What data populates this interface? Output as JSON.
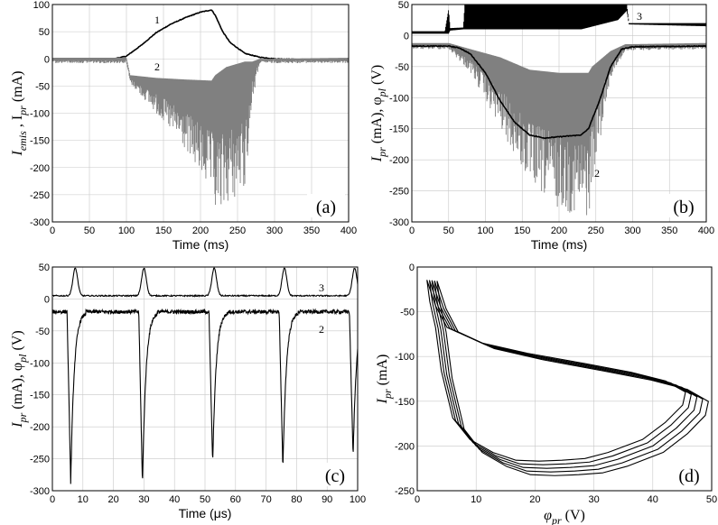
{
  "chart_data": [
    {
      "panel_label": "(a)",
      "type": "line",
      "xlabel": "Time (ms)",
      "ylabel": "I_emis , I_pr (mA)",
      "ylabel_parts": {
        "s1": "I",
        "sub1": "emis",
        "mid": " , I",
        "sub2": "pr",
        "end": " (mA)"
      },
      "xlim": [
        0,
        400
      ],
      "ylim": [
        -300,
        100
      ],
      "xticks": [
        "0",
        "50",
        "100",
        "150",
        "200",
        "250",
        "300",
        "350",
        "400"
      ],
      "yticks": [
        "-300",
        "-250",
        "-200",
        "-150",
        "-100",
        "-50",
        "0",
        "50",
        "100"
      ],
      "series": [
        {
          "name": "1",
          "color": "#000000",
          "x": [
            0,
            60,
            80,
            100,
            120,
            140,
            160,
            180,
            200,
            215,
            220,
            230,
            240,
            260,
            280,
            300,
            330,
            360,
            400
          ],
          "y": [
            -2,
            -2,
            -1,
            5,
            25,
            48,
            64,
            76,
            86,
            90,
            80,
            50,
            30,
            10,
            3,
            0,
            -1,
            -2,
            -2
          ]
        },
        {
          "name": "2",
          "color": "#808080",
          "style": "noise-band",
          "x": [
            0,
            100,
            105,
            140,
            180,
            215,
            220,
            235,
            260,
            270,
            280,
            400
          ],
          "upper": [
            2,
            2,
            -30,
            -35,
            -38,
            -40,
            -30,
            -15,
            -5,
            -5,
            0,
            2
          ],
          "lower": [
            -8,
            -8,
            -45,
            -100,
            -170,
            -250,
            -290,
            -270,
            -240,
            -80,
            -8,
            -8
          ]
        }
      ],
      "annotations": [
        "1",
        "2"
      ]
    },
    {
      "panel_label": "(b)",
      "type": "line",
      "xlabel": "Time (ms)",
      "ylabel": "I_pr (mA), φ_pl (V)",
      "ylabel_parts": {
        "s1": "I",
        "sub1": "pr",
        "mid": " (mA), φ",
        "sub2": "pl",
        "end": " (V)"
      },
      "xlim": [
        0,
        400
      ],
      "ylim": [
        -300,
        50
      ],
      "xticks": [
        "0",
        "50",
        "100",
        "150",
        "200",
        "250",
        "300",
        "350",
        "400"
      ],
      "yticks": [
        "-300",
        "-250",
        "-200",
        "-150",
        "-100",
        "-50",
        "0",
        "50"
      ],
      "series": [
        {
          "name": "3",
          "color": "#000000",
          "style": "oscillation-band",
          "x": [
            0,
            45,
            50,
            52,
            70,
            72,
            230,
            280,
            292,
            295,
            400
          ],
          "upper": [
            7,
            7,
            42,
            12,
            13,
            50,
            50,
            50,
            50,
            20,
            20
          ],
          "lower": [
            3,
            3,
            3,
            8,
            10,
            10,
            10,
            25,
            40,
            18,
            15
          ]
        },
        {
          "name": "2",
          "color": "#808080",
          "style": "noise-band",
          "x": [
            0,
            50,
            80,
            120,
            160,
            200,
            240,
            245,
            270,
            290,
            400
          ],
          "upper": [
            -12,
            -12,
            -22,
            -35,
            -55,
            -60,
            -60,
            -50,
            -25,
            -14,
            -12
          ],
          "lower": [
            -22,
            -22,
            -60,
            -150,
            -240,
            -280,
            -295,
            -240,
            -70,
            -24,
            -22
          ]
        },
        {
          "name": "black-mean",
          "color": "#000000",
          "x": [
            0,
            50,
            65,
            80,
            100,
            120,
            140,
            160,
            180,
            200,
            230,
            240,
            255,
            270,
            285,
            300,
            400
          ],
          "y": [
            -17,
            -17,
            -20,
            -30,
            -60,
            -105,
            -140,
            -160,
            -165,
            -163,
            -160,
            -150,
            -105,
            -50,
            -22,
            -18,
            -17
          ]
        }
      ],
      "annotations": [
        "3",
        "2"
      ]
    },
    {
      "panel_label": "(c)",
      "type": "line",
      "xlabel": "Time (μs)",
      "ylabel": "I_pr (mA), φ_pl (V)",
      "ylabel_parts": {
        "s1": "I",
        "sub1": "pr",
        "mid": " (mA), φ",
        "sub2": "pl",
        "end": " (V)"
      },
      "xlim": [
        0,
        100
      ],
      "ylim": [
        -300,
        50
      ],
      "xticks": [
        "0",
        "10",
        "20",
        "30",
        "40",
        "50",
        "60",
        "70",
        "80",
        "90",
        "100"
      ],
      "yticks": [
        "-300",
        "-250",
        "-200",
        "-150",
        "-100",
        "-50",
        "0",
        "50"
      ],
      "series": [
        {
          "name": "3",
          "color": "#000000",
          "pulse_centers": [
            7.5,
            30,
            53,
            76,
            99
          ],
          "baseline": 5,
          "peak": 48
        },
        {
          "name": "2",
          "color": "#000000",
          "spike_centers": [
            6,
            29.5,
            52.5,
            75.5,
            98.5
          ],
          "baseline": -20,
          "spike_minima": [
            -290,
            -295,
            -262,
            -270,
            -250
          ]
        }
      ],
      "annotations": [
        "3",
        "2"
      ]
    },
    {
      "panel_label": "(d)",
      "type": "line",
      "xlabel": "φ_pr (V)",
      "xlabel_parts": {
        "s1": "φ",
        "sub1": "pr",
        "end": " (V)"
      },
      "ylabel": "I_pr (mA)",
      "ylabel_parts": {
        "s1": "I",
        "sub1": "pr",
        "mid": "",
        "sub2": "",
        "end": " (mA)"
      },
      "xlim": [
        0,
        50
      ],
      "ylim": [
        -250,
        0
      ],
      "xticks": [
        "0",
        "10",
        "20",
        "30",
        "40",
        "50"
      ],
      "yticks": [
        "-250",
        "-200",
        "-150",
        "-100",
        "-50",
        "0"
      ],
      "series": [
        {
          "name": "loop",
          "color": "#000000",
          "loops": 5,
          "x": [
            2.5,
            3,
            4,
            6,
            12,
            20,
            30,
            38,
            44,
            47.5,
            47,
            44,
            40,
            34,
            30,
            26,
            22,
            18,
            14,
            10,
            7,
            5,
            4,
            3,
            2.5
          ],
          "y": [
            -15,
            -25,
            -45,
            -70,
            -88,
            -100,
            -112,
            -122,
            -132,
            -145,
            -160,
            -180,
            -200,
            -215,
            -222,
            -224,
            -225,
            -224,
            -215,
            -200,
            -175,
            -120,
            -70,
            -40,
            -15
          ]
        }
      ]
    }
  ]
}
